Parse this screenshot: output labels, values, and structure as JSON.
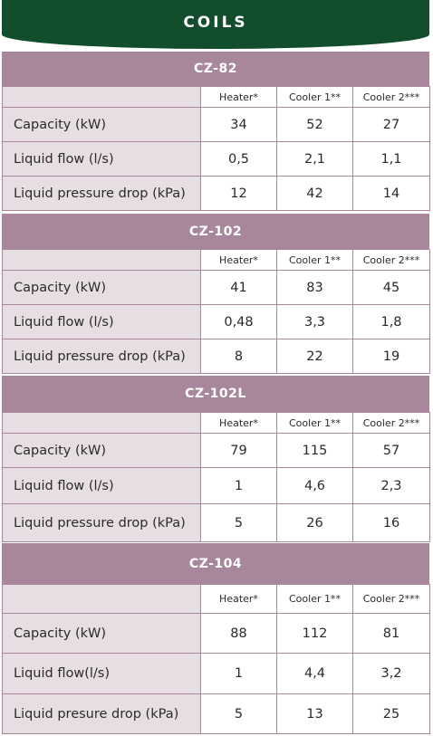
{
  "title": "COILS",
  "columns": [
    "Heater*",
    "Cooler 1**",
    "Cooler 2***"
  ],
  "sections": [
    {
      "model": "CZ-82",
      "rows": [
        {
          "label": "Capacity (kW)",
          "values": [
            "34",
            "52",
            "27"
          ]
        },
        {
          "label": "Liquid flow (l/s)",
          "values": [
            "0,5",
            "2,1",
            "1,1"
          ]
        },
        {
          "label": "Liquid pressure drop (kPa)",
          "values": [
            "12",
            "42",
            "14"
          ]
        }
      ]
    },
    {
      "model": "CZ-102",
      "rows": [
        {
          "label": "Capacity (kW)",
          "values": [
            "41",
            "83",
            "45"
          ]
        },
        {
          "label": "Liquid flow (l/s)",
          "values": [
            "0,48",
            "3,3",
            "1,8"
          ]
        },
        {
          "label": "Liquid pressure drop (kPa)",
          "values": [
            "8",
            "22",
            "19"
          ]
        }
      ]
    },
    {
      "model": "CZ-102L",
      "rows": [
        {
          "label": "Capacity (kW)",
          "values": [
            "79",
            "115",
            "57"
          ]
        },
        {
          "label": "Liquid flow (l/s)",
          "values": [
            "1",
            "4,6",
            "2,3"
          ]
        },
        {
          "label": "Liquid pressure drop (kPa)",
          "values": [
            "5",
            "26",
            "16"
          ]
        }
      ]
    },
    {
      "model": "CZ-104",
      "rows": [
        {
          "label": "Capacity (kW)",
          "values": [
            "88",
            "112",
            "81"
          ]
        },
        {
          "label": "Liquid flow(l/s)",
          "values": [
            "1",
            "4,4",
            "3,2"
          ]
        },
        {
          "label": "Liquid presure drop (kPa)",
          "values": [
            "5",
            "13",
            "25"
          ]
        }
      ]
    }
  ],
  "colors": {
    "header_green": "#124d2c",
    "model_bar_mauve": "#a8879c",
    "label_cell_bg": "#e7dee3"
  }
}
